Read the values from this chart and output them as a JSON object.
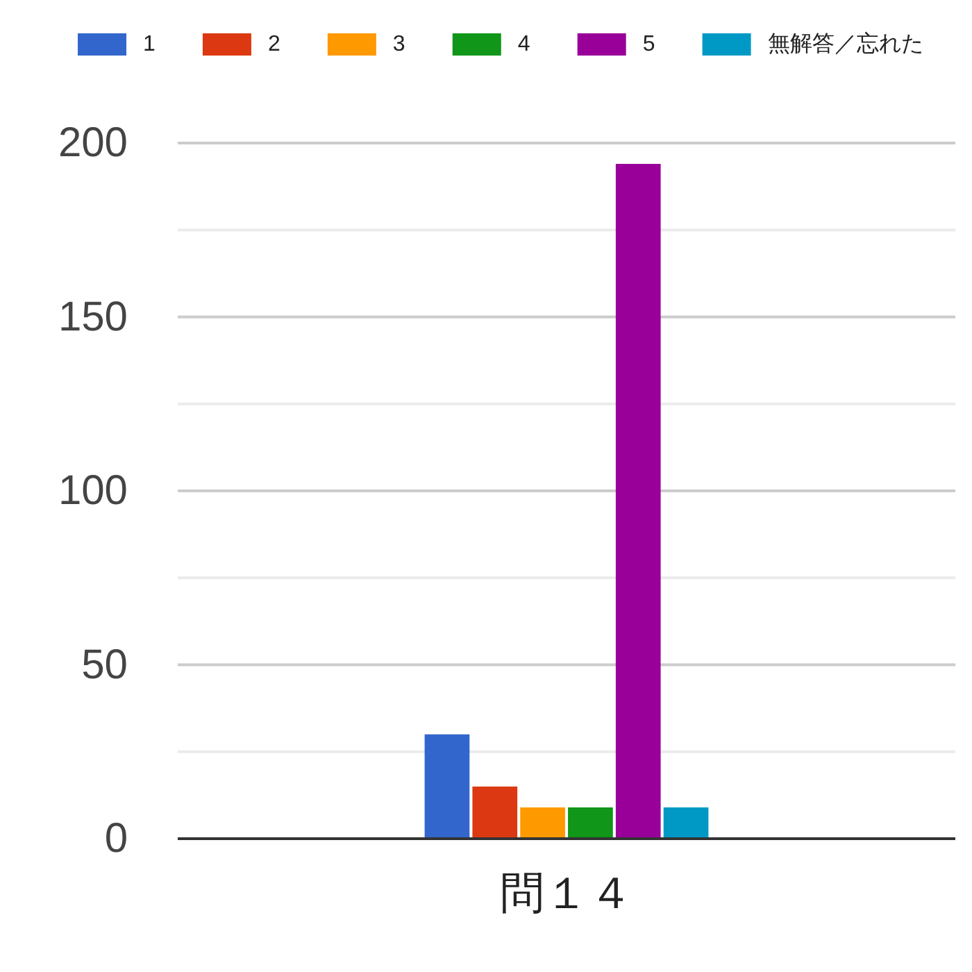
{
  "chart_data": {
    "type": "bar",
    "categories": [
      "問１４"
    ],
    "series": [
      {
        "name": "1",
        "color": "#3366cc",
        "values": [
          30
        ]
      },
      {
        "name": "2",
        "color": "#dc3912",
        "values": [
          15
        ]
      },
      {
        "name": "3",
        "color": "#ff9900",
        "values": [
          9
        ]
      },
      {
        "name": "4",
        "color": "#109618",
        "values": [
          9
        ]
      },
      {
        "name": "5",
        "color": "#990099",
        "values": [
          194
        ]
      },
      {
        "name": "無解答／忘れた",
        "color": "#0099c6",
        "values": [
          9
        ]
      }
    ],
    "ylim": [
      0,
      200
    ],
    "yticks": [
      0,
      {
        "value": 25,
        "label": null
      },
      50,
      {
        "value": 75,
        "label": null
      },
      100,
      {
        "value": 125,
        "label": null
      },
      150,
      {
        "value": 175,
        "label": null
      },
      200
    ],
    "grid": "y",
    "legend": "top"
  }
}
